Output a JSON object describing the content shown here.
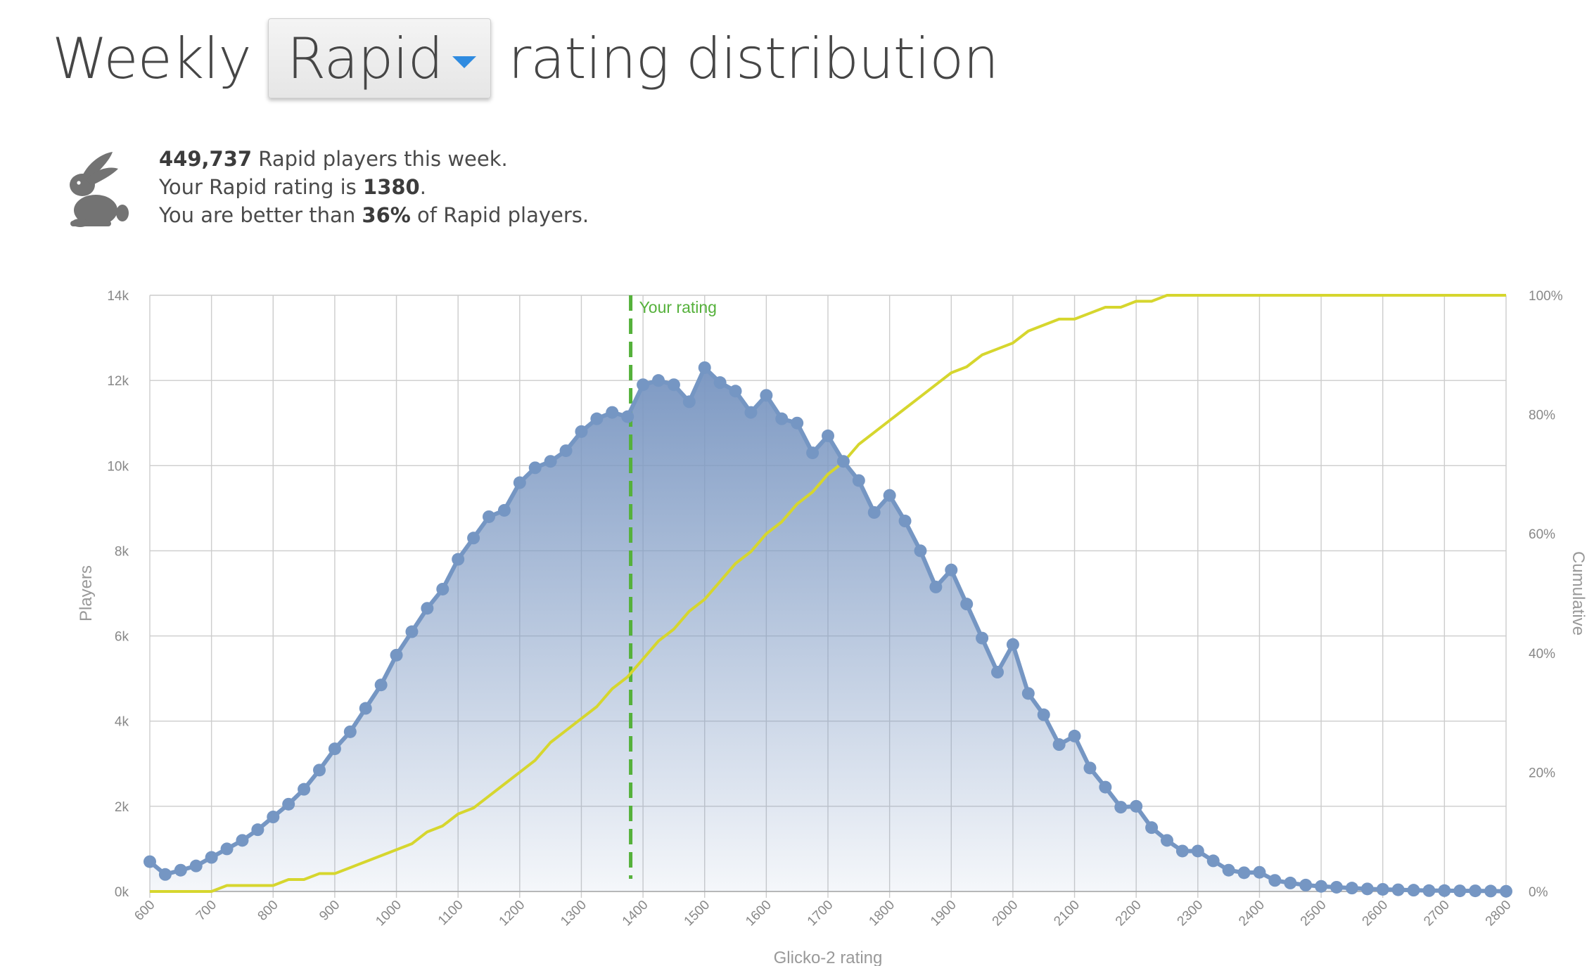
{
  "header": {
    "title_prefix": "Weekly",
    "perf_type": "Rapid",
    "title_suffix": "rating distribution"
  },
  "info": {
    "icon": "rabbit-icon",
    "players_count": "449,737",
    "players_text": " Rapid players this week.",
    "rating_prefix": "Your Rapid rating is ",
    "rating_value": "1380",
    "rating_suffix": ".",
    "better_prefix": "You are better than ",
    "better_value": "36%",
    "better_suffix": " of Rapid players."
  },
  "colors": {
    "players_line": "#7596c3",
    "area_top": "#7d99c3",
    "cumulative_line": "#d6d62e",
    "your_rating_line": "#55b13b",
    "grid": "#cccccc"
  },
  "chart_data": {
    "type": "area",
    "xlabel": "Glicko-2 rating",
    "ylabel": "Players",
    "y2label": "Cumulative",
    "xlim": [
      600,
      2800
    ],
    "ylim": [
      0,
      14000
    ],
    "y2lim": [
      0,
      100
    ],
    "grid": true,
    "x_ticks": [
      "600",
      "700",
      "800",
      "900",
      "1000",
      "1100",
      "1200",
      "1300",
      "1400",
      "1500",
      "1600",
      "1700",
      "1800",
      "1900",
      "2000",
      "2100",
      "2200",
      "2300",
      "2400",
      "2500",
      "2600",
      "2700",
      "2800"
    ],
    "y_ticks": [
      "0k",
      "2k",
      "4k",
      "6k",
      "8k",
      "10k",
      "12k",
      "14k"
    ],
    "y2_ticks": [
      "0%",
      "20%",
      "40%",
      "60%",
      "80%",
      "100%"
    ],
    "your_rating": {
      "value": 1380,
      "label": "Your rating"
    },
    "x": [
      600,
      625,
      650,
      675,
      700,
      725,
      750,
      775,
      800,
      825,
      850,
      875,
      900,
      925,
      950,
      975,
      1000,
      1025,
      1050,
      1075,
      1100,
      1125,
      1150,
      1175,
      1200,
      1225,
      1250,
      1275,
      1300,
      1325,
      1350,
      1375,
      1400,
      1425,
      1450,
      1475,
      1500,
      1525,
      1550,
      1575,
      1600,
      1625,
      1650,
      1675,
      1700,
      1725,
      1750,
      1775,
      1800,
      1825,
      1850,
      1875,
      1900,
      1925,
      1950,
      1975,
      2000,
      2025,
      2050,
      2075,
      2100,
      2125,
      2150,
      2175,
      2200,
      2225,
      2250,
      2275,
      2300,
      2325,
      2350,
      2375,
      2400,
      2425,
      2450,
      2475,
      2500,
      2525,
      2550,
      2575,
      2600,
      2625,
      2650,
      2675,
      2700,
      2725,
      2750,
      2775,
      2800
    ],
    "series": [
      {
        "name": "Players",
        "values": [
          700,
          400,
          500,
          600,
          800,
          1000,
          1200,
          1450,
          1750,
          2050,
          2400,
          2850,
          3350,
          3750,
          4300,
          4850,
          5550,
          6100,
          6650,
          7100,
          7800,
          8300,
          8800,
          8950,
          9600,
          9950,
          10100,
          10350,
          10800,
          11100,
          11250,
          11150,
          11900,
          12000,
          11900,
          11500,
          12300,
          11950,
          11750,
          11250,
          11650,
          11100,
          11000,
          10300,
          10700,
          10100,
          9650,
          8900,
          9300,
          8700,
          8000,
          7150,
          7550,
          6750,
          5950,
          5150,
          5800,
          4650,
          4150,
          3450,
          3650,
          2900,
          2450,
          1980,
          2000,
          1500,
          1200,
          950,
          950,
          720,
          500,
          440,
          450,
          260,
          200,
          150,
          120,
          100,
          80,
          60,
          50,
          40,
          30,
          20,
          20,
          15,
          15,
          10,
          5
        ]
      },
      {
        "name": "Cumulative",
        "values": [
          0,
          0,
          0,
          0,
          0,
          1,
          1,
          1,
          1,
          2,
          2,
          3,
          3,
          4,
          5,
          6,
          7,
          8,
          10,
          11,
          13,
          14,
          16,
          18,
          20,
          22,
          25,
          27,
          29,
          31,
          34,
          36,
          39,
          42,
          44,
          47,
          49,
          52,
          55,
          57,
          60,
          62,
          65,
          67,
          70,
          72,
          75,
          77,
          79,
          81,
          83,
          85,
          87,
          88,
          90,
          91,
          92,
          94,
          95,
          96,
          96,
          97,
          98,
          98,
          99,
          99,
          100,
          100,
          100,
          100,
          100,
          100,
          100,
          100,
          100,
          100,
          100,
          100,
          100,
          100,
          100,
          100,
          100,
          100,
          100,
          100,
          100,
          100,
          100
        ]
      }
    ]
  }
}
